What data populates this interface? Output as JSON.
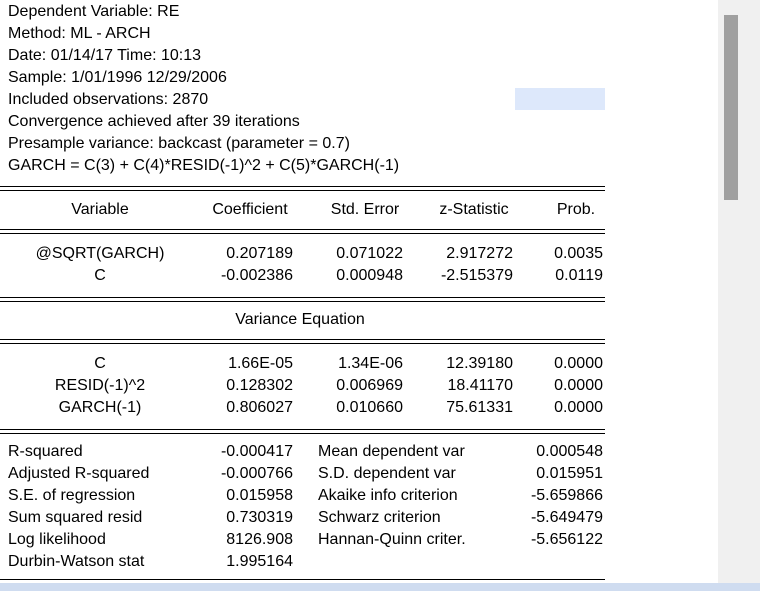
{
  "header": {
    "lines": [
      "Dependent Variable: RE",
      "Method: ML - ARCH",
      "Date: 01/14/17   Time: 10:13",
      "Sample: 1/01/1996 12/29/2006",
      "Included observations: 2870",
      "Convergence achieved after 39 iterations",
      "Presample variance: backcast (parameter = 0.7)",
      "GARCH = C(3) + C(4)*RESID(-1)^2 + C(5)*GARCH(-1)"
    ]
  },
  "table": {
    "columns": [
      "Variable",
      "Coefficient",
      "Std. Error",
      "z-Statistic",
      "Prob."
    ],
    "mean_rows": [
      [
        "@SQRT(GARCH)",
        "0.207189",
        "0.071022",
        "2.917272",
        "0.0035"
      ],
      [
        "C",
        "-0.002386",
        "0.000948",
        "-2.515379",
        "0.0119"
      ]
    ],
    "variance_title": "Variance Equation",
    "variance_rows": [
      [
        "C",
        "1.66E-05",
        "1.34E-06",
        "12.39180",
        "0.0000"
      ],
      [
        "RESID(-1)^2",
        "0.128302",
        "0.006969",
        "18.41170",
        "0.0000"
      ],
      [
        "GARCH(-1)",
        "0.806027",
        "0.010660",
        "75.61331",
        "0.0000"
      ]
    ]
  },
  "stats": {
    "rows": [
      [
        "R-squared",
        "-0.000417",
        "Mean dependent var",
        "0.000548"
      ],
      [
        "Adjusted R-squared",
        "-0.000766",
        "S.D. dependent var",
        "0.015951"
      ],
      [
        "S.E. of regression",
        "0.015958",
        "Akaike info criterion",
        "-5.659866"
      ],
      [
        "Sum squared resid",
        "0.730319",
        "Schwarz criterion",
        "-5.649479"
      ],
      [
        "Log likelihood",
        "8126.908",
        "Hannan-Quinn criter.",
        "-5.656122"
      ],
      [
        "Durbin-Watson stat",
        "1.995164"
      ]
    ]
  }
}
